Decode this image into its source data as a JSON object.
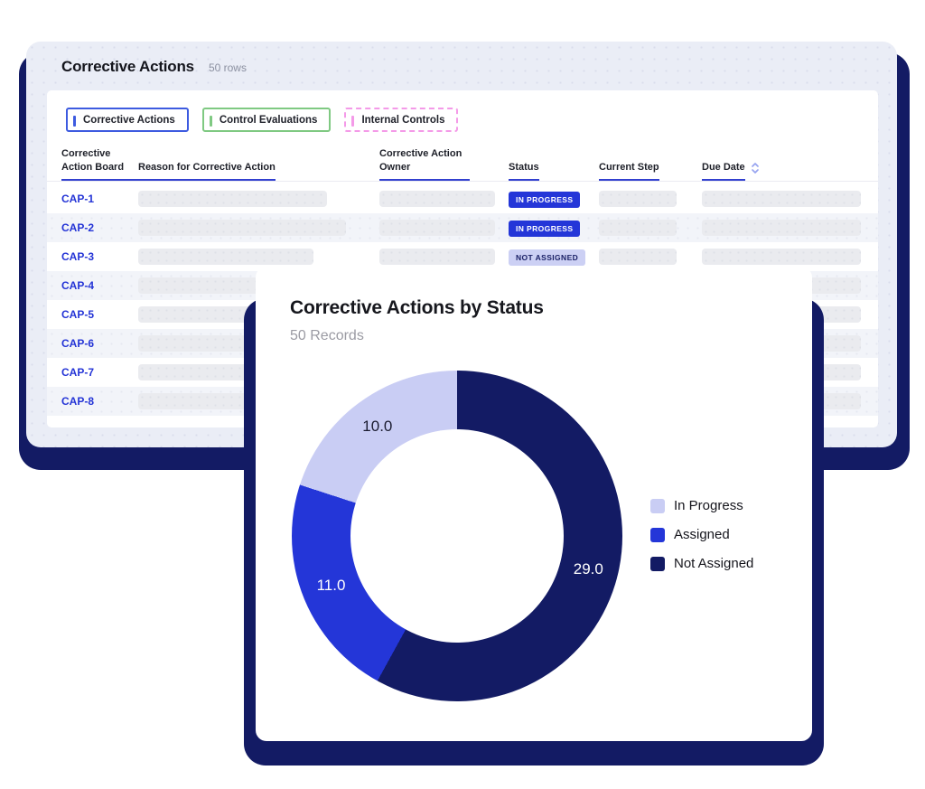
{
  "colors": {
    "navy": "#131b64",
    "blue": "#2436d8",
    "lavender": "#c9cdf4",
    "card_bg": "#eaedf6",
    "header_underline": "#3240cf",
    "link_blue": "#2434d6",
    "muted_text": "#8b90a0"
  },
  "table_card": {
    "title": "Corrective Actions",
    "row_count_label": "50 rows",
    "tabs": [
      {
        "label": "Corrective Actions",
        "accent": "#3d5be0",
        "border_style": "solid"
      },
      {
        "label": "Control Evaluations",
        "accent": "#7fc982",
        "border_style": "solid"
      },
      {
        "label": "Internal Controls",
        "accent": "#f49ae8",
        "border_style": "dashed"
      }
    ],
    "columns": [
      {
        "label": "Corrective Action Board"
      },
      {
        "label": "Reason for Corrective Action"
      },
      {
        "label": "Corrective Action Owner"
      },
      {
        "label": "Status"
      },
      {
        "label": "Current Step"
      },
      {
        "label": "Due Date",
        "sortable": true
      }
    ],
    "rows": [
      {
        "id": "CAP-1",
        "status": "IN PROGRESS",
        "status_type": "in-progress",
        "bars": {
          "reason": 209,
          "owner": 128,
          "step": 86,
          "due": 176
        }
      },
      {
        "id": "CAP-2",
        "status": "IN PROGRESS",
        "status_type": "in-progress",
        "bars": {
          "reason": 230,
          "owner": 128,
          "step": 86,
          "due": 176
        }
      },
      {
        "id": "CAP-3",
        "status": "NOT ASSIGNED",
        "status_type": "not-assigned",
        "bars": {
          "reason": 194,
          "owner": 128,
          "step": 86,
          "due": 176
        }
      },
      {
        "id": "CAP-4",
        "status": null,
        "bars": {
          "reason": 215,
          "owner": 128,
          "step": 86,
          "due": 176
        }
      },
      {
        "id": "CAP-5",
        "status": null,
        "bars": {
          "reason": 225,
          "owner": 128,
          "step": 86,
          "due": 176
        }
      },
      {
        "id": "CAP-6",
        "status": null,
        "bars": {
          "reason": 205,
          "owner": 128,
          "step": 86,
          "due": 176
        }
      },
      {
        "id": "CAP-7",
        "status": null,
        "bars": {
          "reason": 220,
          "owner": 128,
          "step": 86,
          "due": 176
        }
      },
      {
        "id": "CAP-8",
        "status": null,
        "bars": {
          "reason": 210,
          "owner": 128,
          "step": 86,
          "due": 176
        }
      }
    ]
  },
  "chart_card": {
    "title": "Corrective Actions by Status",
    "subtitle": "50 Records"
  },
  "chart_data": {
    "type": "pie",
    "donut": true,
    "title": "Corrective Actions by Status",
    "subtitle": "50 Records",
    "total_records": 50,
    "start_angle_deg": 0,
    "direction": "clockwise",
    "segments": [
      {
        "label": "Not Assigned",
        "value": 29.0,
        "display": "29.0",
        "color": "#131b64",
        "label_color": "#ffffff"
      },
      {
        "label": "Assigned",
        "value": 11.0,
        "display": "11.0",
        "color": "#2436d8",
        "label_color": "#ffffff"
      },
      {
        "label": "In Progress",
        "value": 10.0,
        "display": "10.0",
        "color": "#c9cdf4",
        "label_color": "#1b1c30"
      }
    ],
    "legend": [
      {
        "label": "In Progress",
        "color": "#c9cdf4"
      },
      {
        "label": "Assigned",
        "color": "#2436d8"
      },
      {
        "label": "Not Assigned",
        "color": "#131b64"
      }
    ],
    "legend_position": "right"
  }
}
